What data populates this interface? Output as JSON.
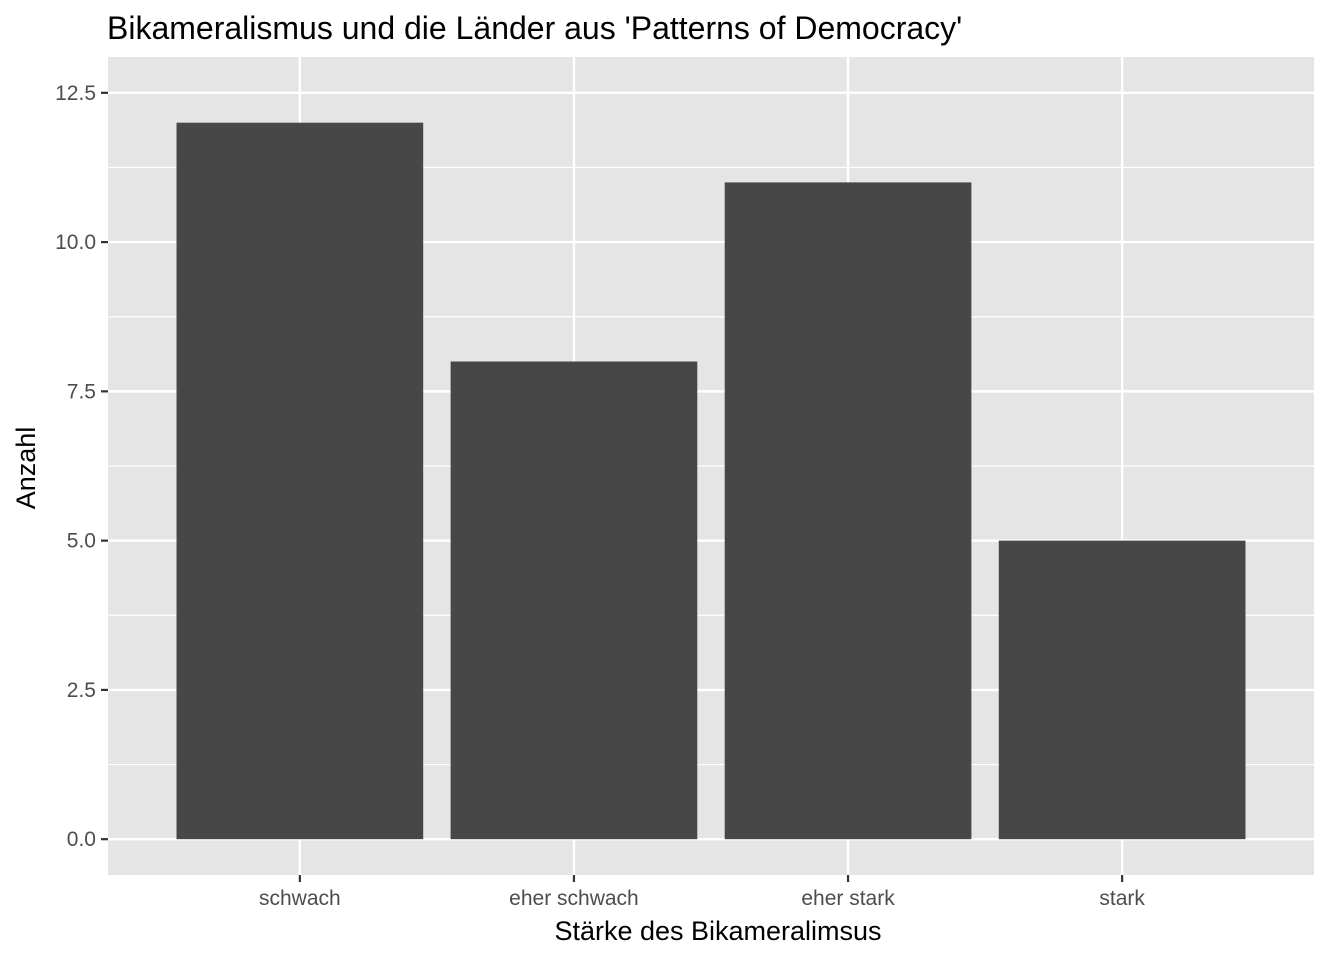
{
  "chart_data": {
    "type": "bar",
    "title": "Bikameralismus und die Länder aus 'Patterns of Democracy'",
    "xlabel": "Stärke des Bikameralimsus",
    "ylabel": "Anzahl",
    "categories": [
      "schwach",
      "eher schwach",
      "eher stark",
      "stark"
    ],
    "values": [
      12,
      8,
      11,
      5
    ],
    "ylim": [
      -0.6,
      13.1
    ],
    "yticks": [
      0,
      2.5,
      5,
      7.5,
      10,
      12.5
    ],
    "ytick_labels": [
      "0.0",
      "2.5",
      "5.0",
      "7.5",
      "10.0",
      "12.5"
    ],
    "grid": true,
    "legend": "none",
    "colors": {
      "panel_background": "#e5e5e5",
      "grid": "#ffffff",
      "bar_fill": "#474747",
      "tick": "#333333",
      "tick_label": "#4d4d4d"
    }
  }
}
